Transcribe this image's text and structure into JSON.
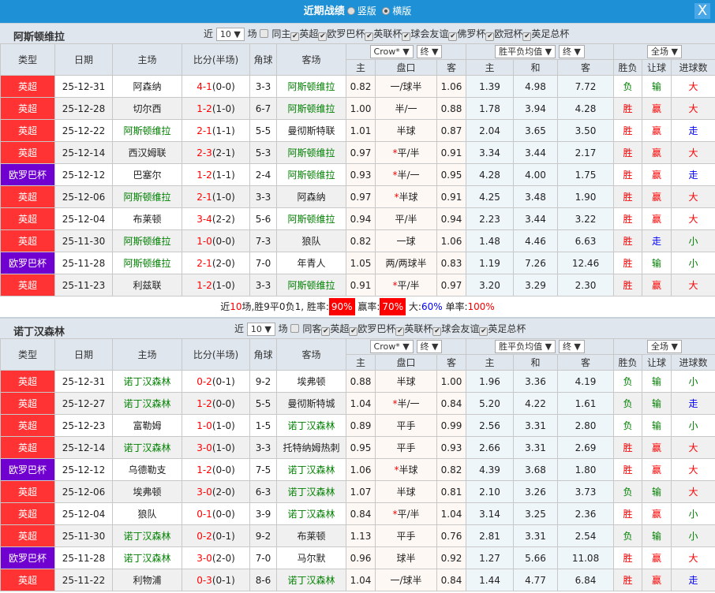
{
  "title": {
    "text": "近期战绩",
    "opt1": "竖版",
    "opt2": "横版",
    "close": "X"
  },
  "colors": {
    "league_epl": "#ff3333",
    "league_uel": "#7000d0",
    "highlight_team": "#008000",
    "win": "#ff0000",
    "loss": "#008000",
    "push": "#0000ff",
    "header_bg": "#dfe6ee",
    "title_bg": "#1e90d6"
  },
  "headers": {
    "type": "类型",
    "date": "日期",
    "home": "主场",
    "score": "比分(半场)",
    "corner": "角球",
    "away": "客场",
    "odds_company": "Crow*",
    "odds_final": "终",
    "euro_type": "胜平负均值",
    "euro_final": "终",
    "period": "全场",
    "h_home": "主",
    "h_line": "盘口",
    "h_away": "客",
    "e_home": "主",
    "e_draw": "和",
    "e_away": "客",
    "res": "胜负",
    "ah": "让球",
    "ou": "进球数"
  },
  "teams": [
    {
      "name": "阿斯顿维拉",
      "recent_label": "近",
      "count": "10",
      "games_label": "场",
      "same_label": "同主",
      "leagues": [
        "英超",
        "欧罗巴杯",
        "英联杯",
        "球会友谊",
        "佛罗杯",
        "欧冠杯",
        "英足总杯"
      ],
      "rows": [
        [
          "英超",
          "25-12-31",
          "阿森纳",
          "4-1",
          "(0-0)",
          "3-3",
          "阿斯顿维拉",
          "0.82",
          "一/球半",
          "",
          "1.06",
          "1.39",
          "4.98",
          "7.72",
          "负",
          "输",
          "大",
          2
        ],
        [
          "英超",
          "25-12-28",
          "切尔西",
          "1-2",
          "(1-0)",
          "6-7",
          "阿斯顿维拉",
          "1.00",
          "半/一",
          "",
          "0.88",
          "1.78",
          "3.94",
          "4.28",
          "胜",
          "赢",
          "大",
          2
        ],
        [
          "英超",
          "25-12-22",
          "阿斯顿维拉",
          "2-1",
          "(1-1)",
          "5-5",
          "曼彻斯特联",
          "1.01",
          "半球",
          "",
          "0.87",
          "2.04",
          "3.65",
          "3.50",
          "胜",
          "赢",
          "走",
          1
        ],
        [
          "英超",
          "25-12-14",
          "西汉姆联",
          "2-3",
          "(2-1)",
          "5-3",
          "阿斯顿维拉",
          "0.97",
          "平/半",
          "*",
          "0.91",
          "3.34",
          "3.44",
          "2.17",
          "胜",
          "赢",
          "大",
          2
        ],
        [
          "欧罗巴杯",
          "25-12-12",
          "巴塞尔",
          "1-2",
          "(1-1)",
          "2-4",
          "阿斯顿维拉",
          "0.93",
          "半/一",
          "*",
          "0.95",
          "4.28",
          "4.00",
          "1.75",
          "胜",
          "赢",
          "走",
          2
        ],
        [
          "英超",
          "25-12-06",
          "阿斯顿维拉",
          "2-1",
          "(1-0)",
          "3-3",
          "阿森纳",
          "0.97",
          "半球",
          "*",
          "0.91",
          "4.25",
          "3.48",
          "1.90",
          "胜",
          "赢",
          "大",
          1
        ],
        [
          "英超",
          "25-12-04",
          "布莱顿",
          "3-4",
          "(2-2)",
          "5-6",
          "阿斯顿维拉",
          "0.94",
          "平/半",
          "",
          "0.94",
          "2.23",
          "3.44",
          "3.22",
          "胜",
          "赢",
          "大",
          2
        ],
        [
          "英超",
          "25-11-30",
          "阿斯顿维拉",
          "1-0",
          "(0-0)",
          "7-3",
          "狼队",
          "0.82",
          "一球",
          "",
          "1.06",
          "1.48",
          "4.46",
          "6.63",
          "胜",
          "走",
          "小",
          1
        ],
        [
          "欧罗巴杯",
          "25-11-28",
          "阿斯顿维拉",
          "2-1",
          "(2-0)",
          "7-0",
          "年青人",
          "1.05",
          "两/两球半",
          "",
          "0.83",
          "1.19",
          "7.26",
          "12.46",
          "胜",
          "输",
          "小",
          1
        ],
        [
          "英超",
          "25-11-23",
          "利兹联",
          "1-2",
          "(1-0)",
          "3-3",
          "阿斯顿维拉",
          "0.91",
          "平/半",
          "*",
          "0.97",
          "3.20",
          "3.29",
          "2.30",
          "胜",
          "赢",
          "大",
          2
        ]
      ]
    },
    {
      "name": "诺丁汉森林",
      "recent_label": "近",
      "count": "10",
      "games_label": "场",
      "same_label": "同客",
      "leagues": [
        "英超",
        "欧罗巴杯",
        "英联杯",
        "球会友谊",
        "英足总杯"
      ],
      "rows": [
        [
          "英超",
          "25-12-31",
          "诺丁汉森林",
          "0-2",
          "(0-1)",
          "9-2",
          "埃弗顿",
          "0.88",
          "半球",
          "",
          "1.00",
          "1.96",
          "3.36",
          "4.19",
          "负",
          "输",
          "小",
          1
        ],
        [
          "英超",
          "25-12-27",
          "诺丁汉森林",
          "1-2",
          "(0-0)",
          "5-5",
          "曼彻斯特城",
          "1.04",
          "半/一",
          "*",
          "0.84",
          "5.20",
          "4.22",
          "1.61",
          "负",
          "输",
          "走",
          1
        ],
        [
          "英超",
          "25-12-23",
          "富勒姆",
          "1-0",
          "(1-0)",
          "1-5",
          "诺丁汉森林",
          "0.89",
          "平手",
          "",
          "0.99",
          "2.56",
          "3.31",
          "2.80",
          "负",
          "输",
          "小",
          2
        ],
        [
          "英超",
          "25-12-14",
          "诺丁汉森林",
          "3-0",
          "(1-0)",
          "3-3",
          "托特纳姆热刺",
          "0.95",
          "平手",
          "",
          "0.93",
          "2.66",
          "3.31",
          "2.69",
          "胜",
          "赢",
          "大",
          1
        ],
        [
          "欧罗巴杯",
          "25-12-12",
          "乌德勒支",
          "1-2",
          "(0-0)",
          "7-5",
          "诺丁汉森林",
          "1.06",
          "半球",
          "*",
          "0.82",
          "4.39",
          "3.68",
          "1.80",
          "胜",
          "赢",
          "大",
          2
        ],
        [
          "英超",
          "25-12-06",
          "埃弗顿",
          "3-0",
          "(2-0)",
          "6-3",
          "诺丁汉森林",
          "1.07",
          "半球",
          "",
          "0.81",
          "2.10",
          "3.26",
          "3.73",
          "负",
          "输",
          "大",
          2
        ],
        [
          "英超",
          "25-12-04",
          "狼队",
          "0-1",
          "(0-0)",
          "3-9",
          "诺丁汉森林",
          "0.84",
          "平/半",
          "*",
          "1.04",
          "3.14",
          "3.25",
          "2.36",
          "胜",
          "赢",
          "小",
          2
        ],
        [
          "英超",
          "25-11-30",
          "诺丁汉森林",
          "0-2",
          "(0-1)",
          "9-2",
          "布莱顿",
          "1.13",
          "平手",
          "",
          "0.76",
          "2.81",
          "3.31",
          "2.54",
          "负",
          "输",
          "小",
          1
        ],
        [
          "欧罗巴杯",
          "25-11-28",
          "诺丁汉森林",
          "3-0",
          "(2-0)",
          "7-0",
          "马尔默",
          "0.96",
          "球半",
          "",
          "0.92",
          "1.27",
          "5.66",
          "11.08",
          "胜",
          "赢",
          "大",
          1
        ],
        [
          "英超",
          "25-11-22",
          "利物浦",
          "0-3",
          "(0-1)",
          "8-6",
          "诺丁汉森林",
          "1.04",
          "一/球半",
          "",
          "0.84",
          "1.44",
          "4.77",
          "6.84",
          "胜",
          "赢",
          "走",
          2
        ]
      ]
    }
  ],
  "summary": {
    "p1": "近",
    "n": "10",
    "p2": "场,胜9平0负1, 胜率:",
    "win_rate": "90%",
    "p3": " 赢率:",
    "ah_rate": "70%",
    "p4": " 大:",
    "over_rate": "60%",
    "p5": " 单率:",
    "odd_rate": "100%"
  }
}
